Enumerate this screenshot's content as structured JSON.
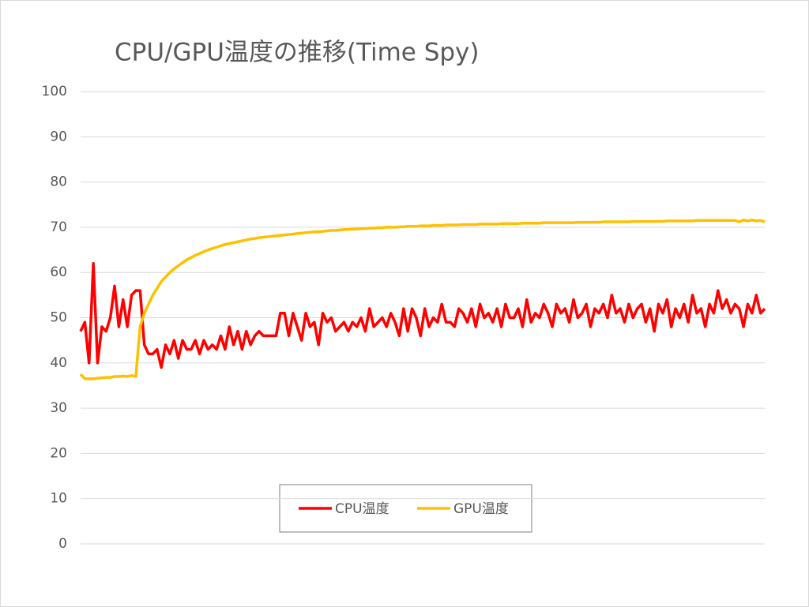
{
  "chart_data": {
    "type": "line",
    "title": "CPU/GPU温度の推移(Time Spy)",
    "ylim": [
      0,
      100
    ],
    "yticks": [
      0,
      10,
      20,
      30,
      40,
      50,
      60,
      70,
      80,
      90,
      100
    ],
    "grid": true,
    "legend": "bottom",
    "series": [
      {
        "name": "CPU温度",
        "color": "#ff0000",
        "values": [
          47,
          49,
          40,
          62,
          40,
          48,
          47,
          50,
          57,
          48,
          54,
          48,
          55,
          56,
          56,
          44,
          42,
          42,
          43,
          39,
          44,
          42,
          45,
          41,
          45,
          43,
          43,
          45,
          42,
          45,
          43,
          44,
          43,
          46,
          43,
          48,
          44,
          47,
          43,
          47,
          44,
          46,
          47,
          46,
          46,
          46,
          46,
          51,
          51,
          46,
          51,
          48,
          45,
          51,
          48,
          49,
          44,
          51,
          49,
          50,
          47,
          48,
          49,
          47,
          49,
          48,
          50,
          47,
          52,
          48,
          49,
          50,
          48,
          51,
          49,
          46,
          52,
          47,
          52,
          50,
          46,
          52,
          48,
          50,
          49,
          53,
          49,
          49,
          48,
          52,
          51,
          49,
          52,
          48,
          53,
          50,
          51,
          49,
          52,
          48,
          53,
          50,
          50,
          52,
          48,
          54,
          49,
          51,
          50,
          53,
          51,
          48,
          53,
          51,
          52,
          49,
          54,
          50,
          51,
          53,
          48,
          52,
          51,
          53,
          50,
          55,
          51,
          52,
          49,
          53,
          50,
          52,
          53,
          49,
          52,
          47,
          53,
          51,
          54,
          48,
          52,
          50,
          53,
          49,
          55,
          51,
          52,
          48,
          53,
          51,
          56,
          52,
          54,
          51,
          53,
          52,
          48,
          53,
          51,
          55,
          51,
          52
        ]
      },
      {
        "name": "GPU温度",
        "color": "#ffc000",
        "values": [
          37.5,
          36.5,
          36.5,
          36.5,
          36.6,
          36.7,
          36.8,
          36.8,
          37,
          37,
          37.1,
          37,
          37.2,
          37,
          48,
          51,
          53,
          55,
          56.5,
          58,
          59,
          60,
          60.8,
          61.5,
          62.2,
          62.8,
          63.3,
          63.8,
          64.2,
          64.6,
          65,
          65.3,
          65.6,
          65.9,
          66.2,
          66.4,
          66.6,
          66.8,
          67,
          67.2,
          67.4,
          67.5,
          67.7,
          67.8,
          67.9,
          68,
          68.1,
          68.2,
          68.3,
          68.4,
          68.5,
          68.6,
          68.7,
          68.8,
          68.9,
          69,
          69,
          69.1,
          69.2,
          69.3,
          69.3,
          69.4,
          69.5,
          69.5,
          69.6,
          69.6,
          69.7,
          69.7,
          69.8,
          69.8,
          69.9,
          69.9,
          70,
          70,
          70,
          70.1,
          70.1,
          70.2,
          70.2,
          70.2,
          70.3,
          70.3,
          70.3,
          70.4,
          70.4,
          70.4,
          70.5,
          70.5,
          70.5,
          70.5,
          70.6,
          70.6,
          70.6,
          70.6,
          70.7,
          70.7,
          70.7,
          70.7,
          70.7,
          70.8,
          70.8,
          70.8,
          70.8,
          70.8,
          70.9,
          70.9,
          70.9,
          70.9,
          70.9,
          71,
          71,
          71,
          71,
          71,
          71,
          71,
          71,
          71.1,
          71.1,
          71.1,
          71.1,
          71.1,
          71.1,
          71.2,
          71.2,
          71.2,
          71.2,
          71.2,
          71.2,
          71.2,
          71.3,
          71.3,
          71.3,
          71.3,
          71.3,
          71.3,
          71.3,
          71.3,
          71.4,
          71.4,
          71.4,
          71.4,
          71.4,
          71.4,
          71.4,
          71.5,
          71.5,
          71.5,
          71.5,
          71.5,
          71.5,
          71.5,
          71.5,
          71.5,
          71.5,
          71.2,
          71.6,
          71.4,
          71.6,
          71.4,
          71.5,
          71.2
        ]
      }
    ]
  }
}
